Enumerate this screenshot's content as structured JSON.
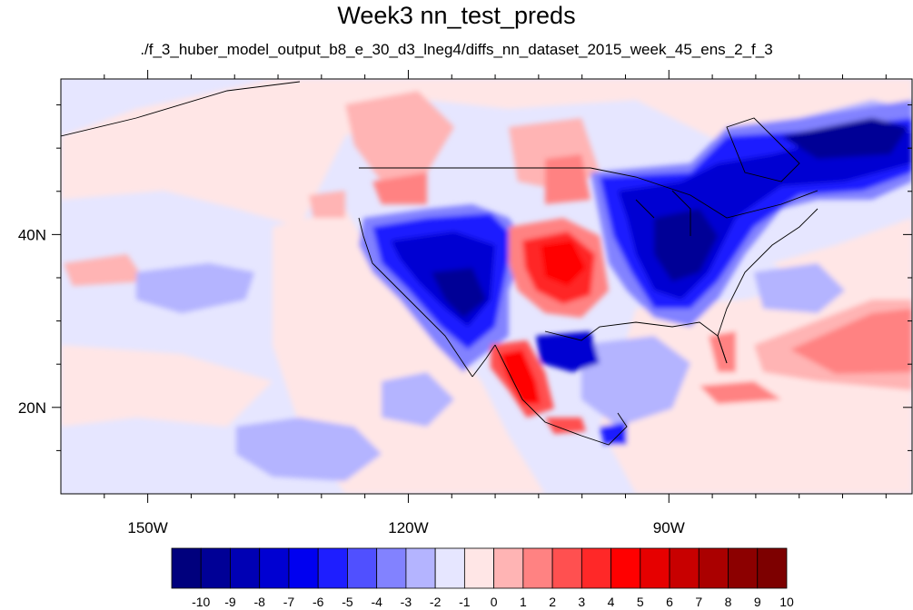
{
  "title": "Week3 nn_test_preds",
  "subtitle": "./f_3_huber_model_output_b8_e_30_d3_lneg4/diffs_nn_dataset_2015_week_45_ens_2_f_3",
  "map": {
    "lon_range": [
      -160,
      -62
    ],
    "lat_range": [
      10,
      58
    ],
    "x_ticks": [
      {
        "lon": -150,
        "label": "150W"
      },
      {
        "lon": -120,
        "label": "120W"
      },
      {
        "lon": -90,
        "label": "90W"
      }
    ],
    "y_ticks": [
      {
        "lat": 40,
        "label": "40N"
      },
      {
        "lat": 20,
        "label": "20N"
      }
    ]
  },
  "colorbar": {
    "levels": [
      -10,
      -9,
      -8,
      -7,
      -6,
      -5,
      -4,
      -3,
      -2,
      -1,
      0,
      1,
      2,
      3,
      4,
      5,
      6,
      7,
      8,
      9,
      10
    ],
    "labels": [
      "-10",
      "-9",
      "-8",
      "-7",
      "-6",
      "-5",
      "-4",
      "-3",
      "-2",
      "-1",
      "0",
      "1",
      "2",
      "3",
      "4",
      "5",
      "6",
      "7",
      "8",
      "9",
      "10"
    ],
    "colors": [
      "#00007d",
      "#000096",
      "#0000b4",
      "#0000d2",
      "#0000f0",
      "#1e1eff",
      "#5050ff",
      "#8282ff",
      "#b4b4ff",
      "#e6e6ff",
      "#ffe6e6",
      "#ffb4b4",
      "#ff8282",
      "#ff5050",
      "#ff2828",
      "#ff0000",
      "#e60000",
      "#c80000",
      "#aa0000",
      "#8c0000",
      "#7d0000"
    ]
  }
}
